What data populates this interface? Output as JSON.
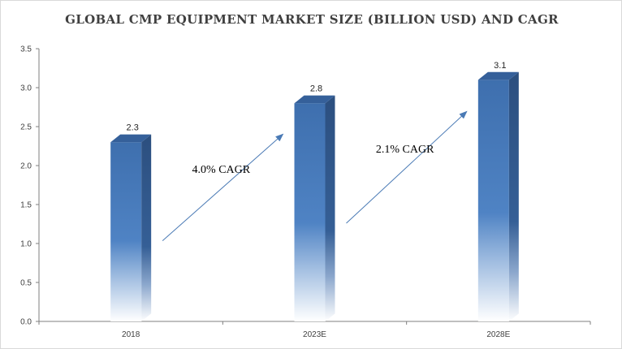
{
  "chart_data": {
    "type": "bar",
    "title": "GLOBAL CMP EQUIPMENT MARKET SIZE (BILLION USD) AND CAGR",
    "categories": [
      "2018",
      "2023E",
      "2028E"
    ],
    "values": [
      2.3,
      2.8,
      3.1
    ],
    "data_labels": [
      "2.3",
      "2.8",
      "3.1"
    ],
    "ylim": [
      0,
      3.5
    ],
    "yticks": [
      "0.0",
      "0.5",
      "1.0",
      "1.5",
      "2.0",
      "2.5",
      "3.0",
      "3.5"
    ],
    "xlabel": "",
    "ylabel": "",
    "grid": false,
    "legend": "none",
    "annotations": [
      {
        "text": "4.0% CAGR",
        "from": "2018",
        "to": "2023E"
      },
      {
        "text": "2.1% CAGR",
        "from": "2023E",
        "to": "2028E"
      }
    ],
    "colors": {
      "bar_top": "#3e6fae",
      "bar_mid": "#4f83c4",
      "bar_side": "#2c4f7f",
      "bar_cap": "#35609a",
      "arrow": "#4a7ab5",
      "axis": "#7f7f7f"
    }
  }
}
